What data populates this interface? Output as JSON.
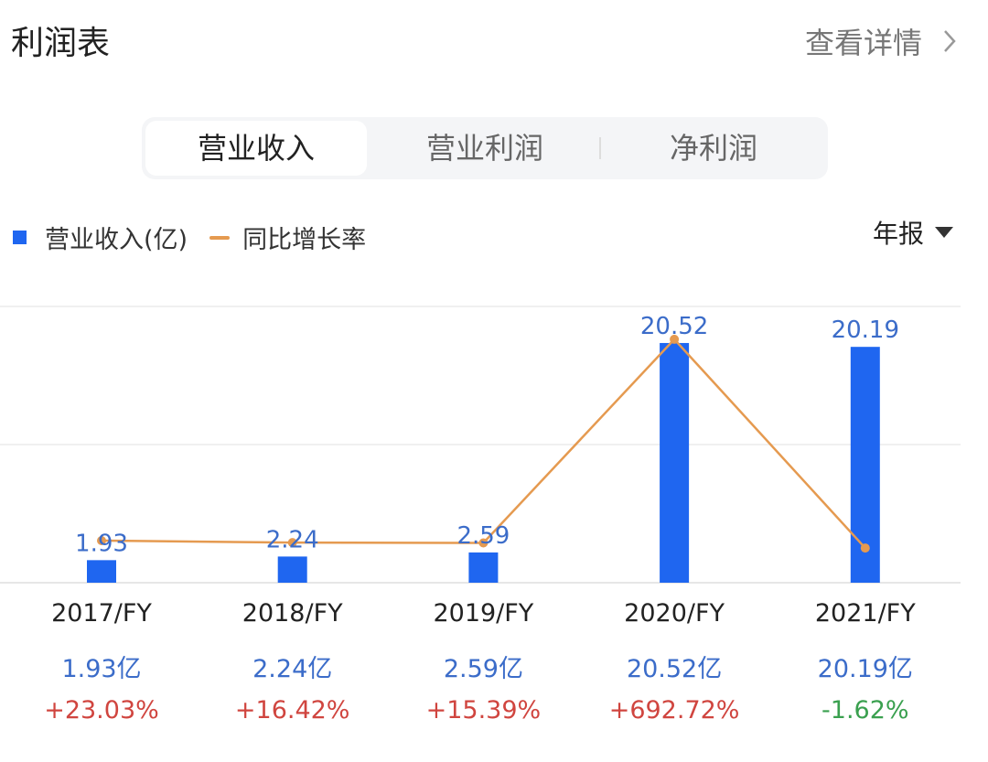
{
  "header": {
    "title": "利润表",
    "detail_label": "查看详情",
    "detail_icon": "chevron-right-icon"
  },
  "tabs": [
    {
      "label": "营业收入",
      "active": true
    },
    {
      "label": "营业利润",
      "active": false
    },
    {
      "label": "净利润",
      "active": false
    }
  ],
  "legend": {
    "bar_label": "营业收入(亿)",
    "line_label": "同比增长率"
  },
  "period": {
    "label": "年报",
    "icon": "caret-down-icon"
  },
  "colors": {
    "bar": "#1f66f0",
    "line": "#e59a50",
    "value_text": "#3b6cc9",
    "positive": "#d0453f",
    "negative": "#3aa04f"
  },
  "chart_data": {
    "type": "bar",
    "categories": [
      "2017/FY",
      "2018/FY",
      "2019/FY",
      "2020/FY",
      "2021/FY"
    ],
    "series": [
      {
        "name": "营业收入(亿)",
        "type": "bar",
        "values": [
          1.93,
          2.24,
          2.59,
          20.52,
          20.19
        ],
        "labels": [
          "1.93",
          "2.24",
          "2.59",
          "20.52",
          "20.19"
        ]
      },
      {
        "name": "同比增长率",
        "type": "line",
        "unit": "%",
        "values": [
          23.03,
          16.42,
          15.39,
          692.72,
          -1.62
        ]
      }
    ],
    "ylim": [
      0,
      23.65
    ],
    "y2lim": [
      -117,
      802
    ],
    "grid": true,
    "legend_position": "top-left",
    "value_labels": [
      "1.93亿",
      "2.24亿",
      "2.59亿",
      "20.52亿",
      "20.19亿"
    ],
    "growth_labels": [
      "+23.03%",
      "+16.42%",
      "+15.39%",
      "+692.72%",
      "-1.62%"
    ]
  }
}
